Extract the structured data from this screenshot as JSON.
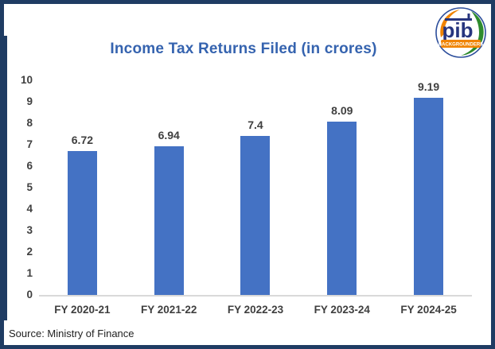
{
  "header": {
    "logo": {
      "text": "pib",
      "banner": "BACKGROUNDERS",
      "colors": {
        "ring_blue": "#2b4d9b",
        "letters_blue": "#27357e",
        "saffron": "#f08300",
        "green": "#2e8b2e"
      }
    }
  },
  "chart_data": {
    "type": "bar",
    "title": "Income Tax Returns Filed (in crores)",
    "categories": [
      "FY 2020-21",
      "FY 2021-22",
      "FY 2022-23",
      "FY 2023-24",
      "FY 2024-25"
    ],
    "values": [
      6.72,
      6.94,
      7.4,
      8.09,
      9.19
    ],
    "labels": [
      "6.72",
      "6.94",
      "7.4",
      "8.09",
      "9.19"
    ],
    "xlabel": "",
    "ylabel": "",
    "ylim": [
      0,
      10
    ],
    "ytick_step": 1,
    "grid": false,
    "legend": false,
    "bar_color": "#4472C4",
    "title_color": "#3563af",
    "axis_label_color": "#3f3f3f",
    "axis_line_color": "#d9d9d9",
    "frame_color": "#1f3c63"
  },
  "footer": {
    "source": "Source: Ministry of Finance"
  }
}
